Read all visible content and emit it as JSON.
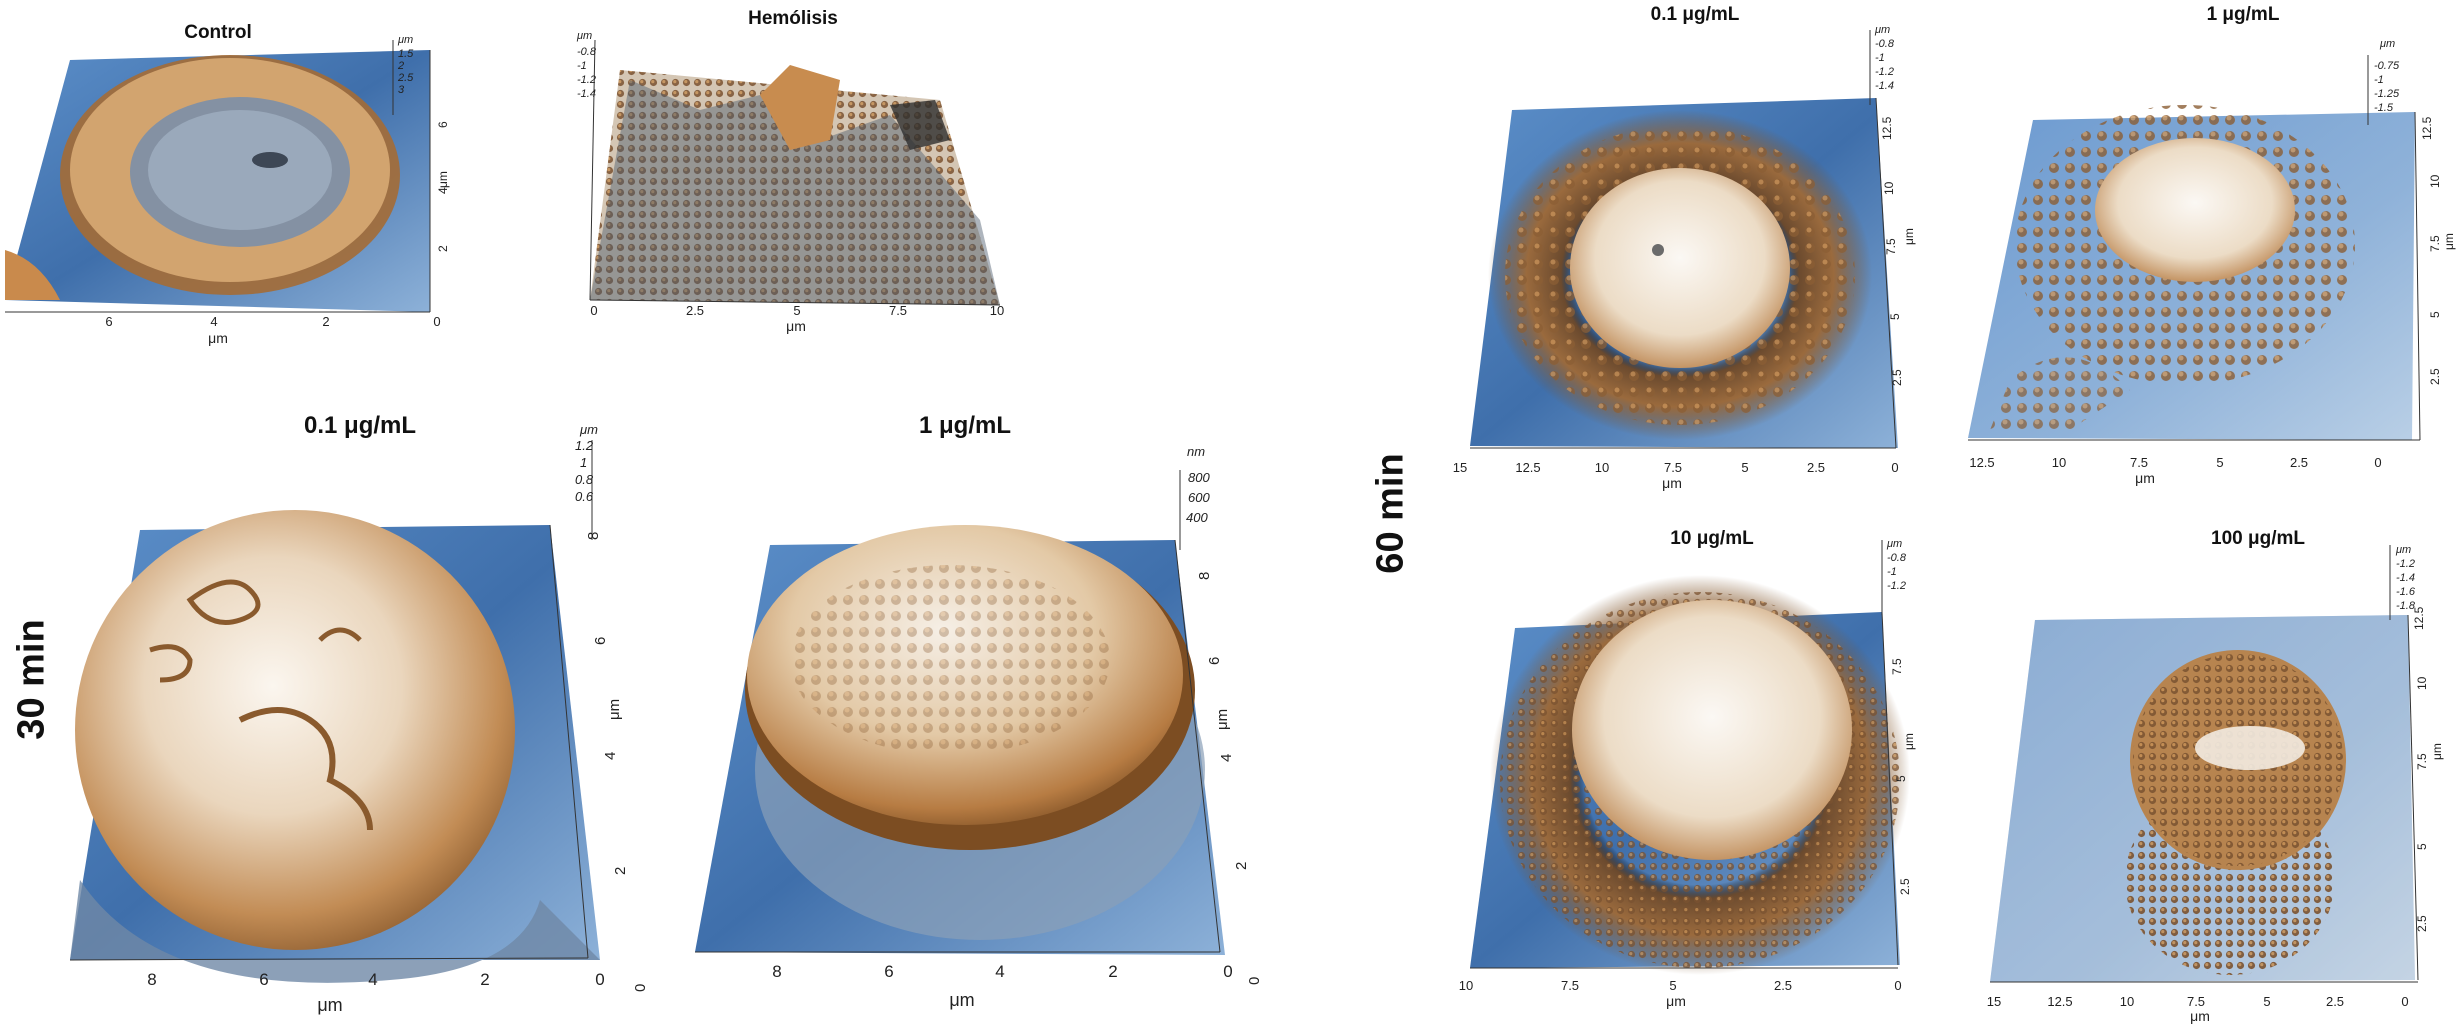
{
  "side_labels": {
    "t30": "30 min",
    "t60": "60 min"
  },
  "panels": {
    "control": {
      "title": "Control",
      "x_ticks": [
        "6",
        "4",
        "2",
        "0"
      ],
      "x_unit": "μm",
      "y_ticks": [
        "2",
        "4",
        "6"
      ],
      "y_unit": "μm",
      "z_ticks": [
        "μm",
        "1.5",
        "2",
        "2.5",
        "3"
      ]
    },
    "hemolisis": {
      "title": "Hemólisis",
      "x_ticks": [
        "0",
        "2.5",
        "5",
        "7.5",
        "10"
      ],
      "x_unit": "μm",
      "z_ticks": [
        "μm",
        "-0.8",
        "-1",
        "-1.2",
        "-1.4"
      ]
    },
    "p30_01": {
      "title": "0.1 μg/mL",
      "x_ticks": [
        "8",
        "6",
        "4",
        "2",
        "0"
      ],
      "x_unit": "μm",
      "y_ticks": [
        "0",
        "2",
        "4",
        "6",
        "8"
      ],
      "y_unit": "μm",
      "z_unit": "μm",
      "z_ticks": [
        "1.2",
        "1",
        "0.8",
        "0.6"
      ]
    },
    "p30_1": {
      "title": "1 μg/mL",
      "x_ticks": [
        "8",
        "6",
        "4",
        "2",
        "0"
      ],
      "x_unit": "μm",
      "y_ticks": [
        "0",
        "2",
        "4",
        "6",
        "8"
      ],
      "y_unit": "μm",
      "z_unit": "nm",
      "z_ticks": [
        "800",
        "600",
        "400"
      ]
    },
    "p60_01": {
      "title": "0.1 μg/mL",
      "x_ticks": [
        "15",
        "12.5",
        "10",
        "7.5",
        "5",
        "2.5",
        "0"
      ],
      "x_unit": "μm",
      "y_ticks": [
        "2.5",
        "5",
        "7.5",
        "10",
        "12.5"
      ],
      "y_unit": "μm",
      "z_ticks": [
        "μm",
        "-0.8",
        "-1",
        "-1.2",
        "-1.4"
      ]
    },
    "p60_1": {
      "title": "1 μg/mL",
      "x_ticks": [
        "12.5",
        "10",
        "7.5",
        "5",
        "2.5",
        "0"
      ],
      "x_unit": "μm",
      "y_ticks": [
        "2.5",
        "5",
        "7.5",
        "10",
        "12.5"
      ],
      "y_unit": "μm",
      "z_ticks": [
        "μm",
        "-0.75",
        "-1",
        "-1.25",
        "-1.5"
      ]
    },
    "p60_10": {
      "title": "10 μg/mL",
      "x_ticks": [
        "10",
        "7.5",
        "5",
        "2.5",
        "0"
      ],
      "x_unit": "μm",
      "y_ticks": [
        "2.5",
        "5",
        "7.5"
      ],
      "y_unit": "μm",
      "z_ticks": [
        "μm",
        "-0.8",
        "-1",
        "-1.2"
      ]
    },
    "p60_100": {
      "title": "100 μg/mL",
      "x_ticks": [
        "15",
        "12.5",
        "10",
        "7.5",
        "5",
        "2.5",
        "0"
      ],
      "x_unit": "μm",
      "y_ticks": [
        "2.5",
        "5",
        "7.5",
        "10",
        "12.5"
      ],
      "y_unit": "μm",
      "z_ticks": [
        "μm",
        "-1.2",
        "-1.4",
        "-1.6",
        "-1.8"
      ]
    }
  }
}
